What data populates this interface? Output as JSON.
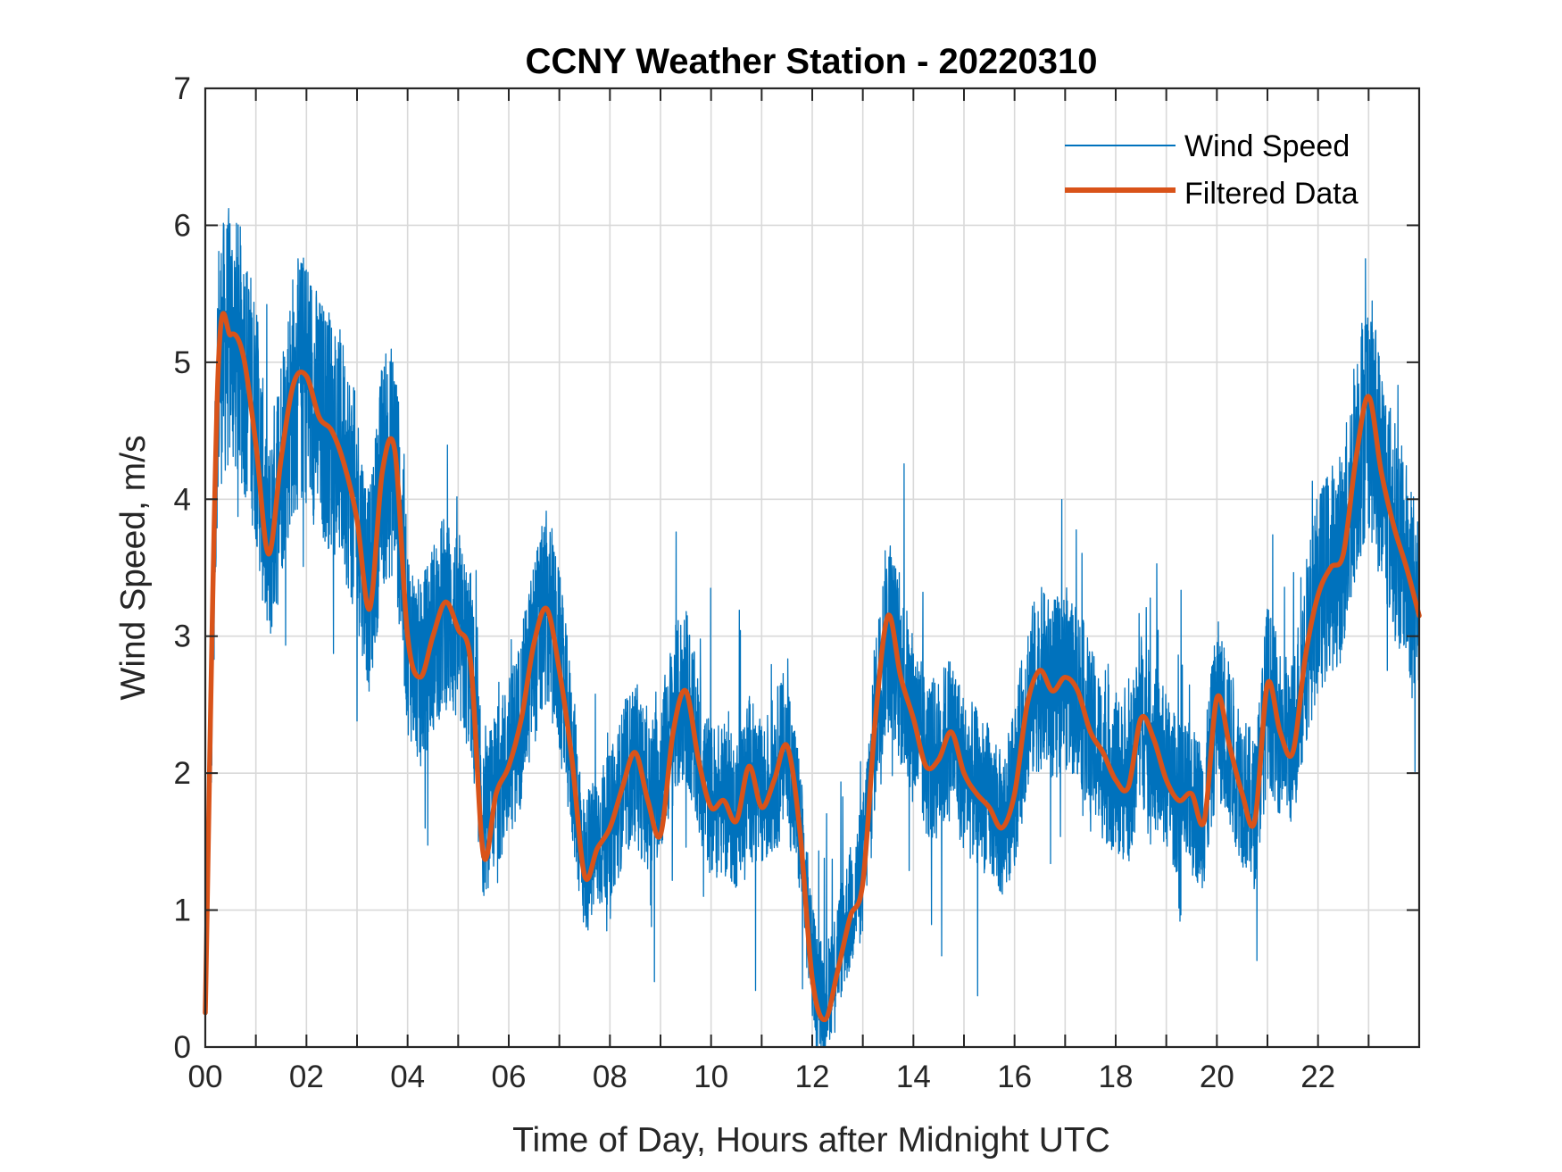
{
  "chart_data": {
    "type": "line",
    "title": "CCNY Weather Station - 20220310",
    "xlabel": "Time of Day, Hours after Midnight UTC",
    "ylabel": "Wind Speed, m/s",
    "xlim": [
      0,
      24
    ],
    "ylim": [
      0,
      7
    ],
    "x_ticks": [
      0,
      2,
      4,
      6,
      8,
      10,
      12,
      14,
      16,
      18,
      20,
      22
    ],
    "x_tick_labels": [
      "00",
      "02",
      "04",
      "06",
      "08",
      "10",
      "12",
      "14",
      "16",
      "18",
      "20",
      "22"
    ],
    "x_minor_grid_step": 1,
    "y_ticks": [
      0,
      1,
      2,
      3,
      4,
      5,
      6,
      7
    ],
    "y_tick_labels": [
      "0",
      "1",
      "2",
      "3",
      "4",
      "5",
      "6",
      "7"
    ],
    "grid": true,
    "legend_position": "top-right",
    "series": [
      {
        "name": "Wind Speed",
        "color": "#0072BD",
        "style": "thin noisy line",
        "x": [
          0.0,
          0.25,
          0.5,
          0.75,
          1.0,
          1.25,
          1.5,
          1.75,
          2.0,
          2.25,
          2.5,
          2.75,
          3.0,
          3.25,
          3.5,
          3.75,
          4.0,
          4.25,
          4.5,
          4.75,
          5.0,
          5.25,
          5.5,
          5.75,
          6.0,
          6.25,
          6.5,
          6.75,
          7.0,
          7.25,
          7.5,
          7.75,
          8.0,
          8.25,
          8.5,
          8.75,
          9.0,
          9.25,
          9.5,
          9.75,
          10.0,
          10.25,
          10.5,
          10.75,
          11.0,
          11.25,
          11.5,
          11.75,
          12.0,
          12.25,
          12.5,
          12.75,
          13.0,
          13.25,
          13.5,
          13.75,
          14.0,
          14.25,
          14.5,
          14.75,
          15.0,
          15.25,
          15.5,
          15.75,
          16.0,
          16.25,
          16.5,
          16.75,
          17.0,
          17.25,
          17.5,
          17.75,
          18.0,
          18.25,
          18.5,
          18.75,
          19.0,
          19.25,
          19.5,
          19.75,
          20.0,
          20.25,
          20.5,
          20.75,
          21.0,
          21.25,
          21.5,
          21.75,
          22.0,
          22.25,
          22.5,
          22.75,
          23.0,
          23.25,
          23.5,
          23.75,
          24.0
        ],
        "values": [
          0.3,
          5.0,
          5.2,
          5.0,
          4.6,
          3.6,
          4.3,
          4.8,
          4.9,
          4.6,
          4.5,
          4.3,
          3.9,
          3.3,
          4.2,
          4.3,
          3.0,
          2.7,
          3.0,
          3.2,
          3.0,
          2.8,
          1.6,
          1.9,
          2.1,
          2.4,
          2.9,
          3.2,
          2.8,
          2.1,
          1.3,
          1.5,
          1.6,
          1.9,
          2.1,
          1.8,
          2.0,
          2.4,
          2.6,
          2.1,
          1.8,
          1.8,
          1.7,
          2.0,
          1.8,
          2.0,
          2.2,
          1.6,
          0.6,
          0.3,
          0.7,
          1.0,
          1.3,
          2.4,
          3.1,
          2.7,
          2.4,
          2.1,
          2.1,
          2.3,
          2.0,
          1.9,
          1.8,
          1.6,
          1.9,
          2.5,
          2.7,
          2.6,
          2.7,
          2.6,
          2.3,
          2.1,
          2.0,
          1.9,
          2.4,
          2.2,
          2.0,
          1.8,
          1.8,
          1.7,
          2.5,
          2.2,
          1.9,
          1.7,
          2.6,
          2.3,
          2.2,
          2.9,
          3.3,
          3.5,
          3.6,
          4.3,
          4.7,
          4.2,
          3.8,
          3.5,
          3.2
        ]
      },
      {
        "name": "Filtered Data",
        "color": "#D95319",
        "style": "thick smooth line",
        "x": [
          0.0,
          0.25,
          0.5,
          0.75,
          1.0,
          1.25,
          1.5,
          1.75,
          2.0,
          2.25,
          2.5,
          2.75,
          3.0,
          3.25,
          3.5,
          3.75,
          4.0,
          4.25,
          4.5,
          4.75,
          5.0,
          5.25,
          5.5,
          5.75,
          6.0,
          6.25,
          6.5,
          6.75,
          7.0,
          7.25,
          7.5,
          7.75,
          8.0,
          8.25,
          8.5,
          8.75,
          9.0,
          9.25,
          9.5,
          9.75,
          10.0,
          10.25,
          10.5,
          10.75,
          11.0,
          11.25,
          11.5,
          11.75,
          12.0,
          12.25,
          12.5,
          12.75,
          13.0,
          13.25,
          13.5,
          13.75,
          14.0,
          14.25,
          14.5,
          14.75,
          15.0,
          15.25,
          15.5,
          15.75,
          16.0,
          16.25,
          16.5,
          16.75,
          17.0,
          17.25,
          17.5,
          17.75,
          18.0,
          18.25,
          18.5,
          18.75,
          19.0,
          19.25,
          19.5,
          19.75,
          20.0,
          20.25,
          20.5,
          20.75,
          21.0,
          21.25,
          21.5,
          21.75,
          22.0,
          22.25,
          22.5,
          22.75,
          23.0,
          23.25,
          23.5,
          23.75,
          24.0
        ],
        "values": [
          0.25,
          4.9,
          5.2,
          5.05,
          4.4,
          3.6,
          4.3,
          4.85,
          4.9,
          4.6,
          4.5,
          4.25,
          3.85,
          3.2,
          4.2,
          4.35,
          3.0,
          2.7,
          3.0,
          3.25,
          3.05,
          2.8,
          1.4,
          1.85,
          2.05,
          2.4,
          2.95,
          3.2,
          2.75,
          2.1,
          1.25,
          1.45,
          1.6,
          1.9,
          2.15,
          1.8,
          1.55,
          2.3,
          2.6,
          2.1,
          1.75,
          1.8,
          1.65,
          2.05,
          1.75,
          1.95,
          2.2,
          1.6,
          0.5,
          0.2,
          0.55,
          0.95,
          1.2,
          2.4,
          3.15,
          2.7,
          2.4,
          2.05,
          2.1,
          2.3,
          2.0,
          1.85,
          1.75,
          1.6,
          1.85,
          2.5,
          2.75,
          2.6,
          2.7,
          2.6,
          2.3,
          2.15,
          1.95,
          1.9,
          2.4,
          2.25,
          1.95,
          1.8,
          1.85,
          1.65,
          2.55,
          2.2,
          1.85,
          1.65,
          2.65,
          2.3,
          2.15,
          2.85,
          3.3,
          3.5,
          3.6,
          4.3,
          4.75,
          4.2,
          3.8,
          3.5,
          3.15
        ]
      }
    ]
  }
}
